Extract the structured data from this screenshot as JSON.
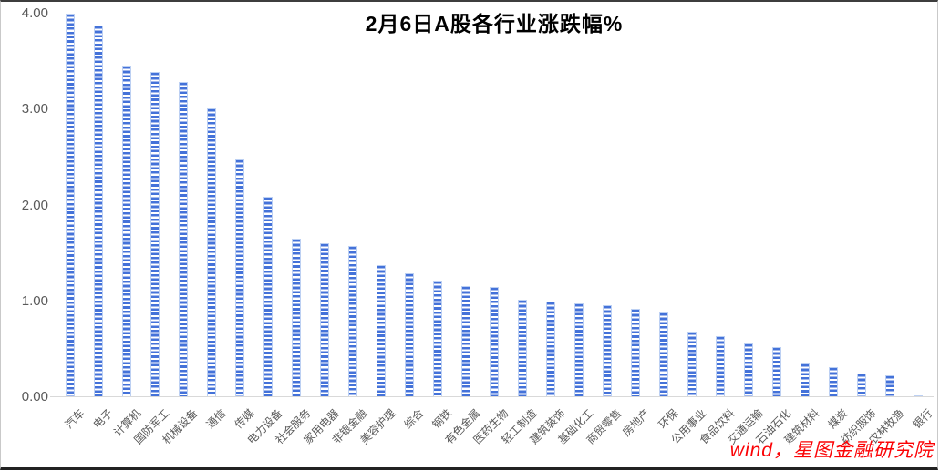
{
  "chart_data": {
    "type": "bar",
    "title": "2月6日A股各行业涨跌幅%",
    "categories": [
      "汽车",
      "电子",
      "计算机",
      "国防军工",
      "机械设备",
      "通信",
      "传媒",
      "电力设备",
      "社会服务",
      "家用电器",
      "非银金融",
      "美容护理",
      "综合",
      "钢铁",
      "有色金属",
      "医药生物",
      "轻工制造",
      "建筑装饰",
      "基础化工",
      "商贸零售",
      "房地产",
      "环保",
      "公用事业",
      "食品饮料",
      "交通运输",
      "石油石化",
      "建筑材料",
      "煤炭",
      "纺织服饰",
      "农林牧渔",
      "银行"
    ],
    "values": [
      4.0,
      3.88,
      3.46,
      3.39,
      3.29,
      3.01,
      2.48,
      2.09,
      1.65,
      1.61,
      1.58,
      1.38,
      1.29,
      1.22,
      1.16,
      1.15,
      1.02,
      1.0,
      0.98,
      0.96,
      0.92,
      0.88,
      0.68,
      0.64,
      0.56,
      0.52,
      0.35,
      0.31,
      0.25,
      0.23,
      0.02
    ],
    "xlabel": "",
    "ylabel": "",
    "ylim": [
      0,
      4
    ],
    "ytick_labels": [
      "0.00",
      "1.00",
      "2.00",
      "3.00",
      "4.00"
    ],
    "grid": "off",
    "legend_position": "none",
    "bar_pattern": "horizontal-stripes",
    "bar_color": "#4472d9",
    "bar_edge_color": "#bcd0f3",
    "axis_text_color": "#595959",
    "axis_line_color": "#d9d9d9",
    "source_note": "wind，星图金融研究院",
    "source_note_color": "#fb0205"
  }
}
